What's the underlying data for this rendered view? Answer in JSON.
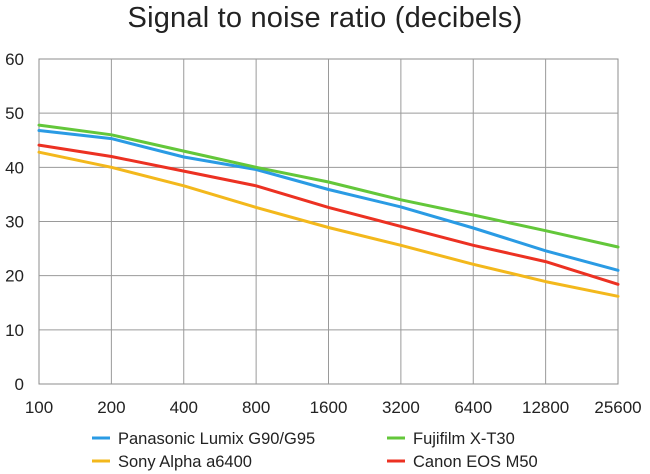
{
  "chart_data": {
    "type": "line",
    "title": "Signal to noise ratio (decibels)",
    "xlabel": "",
    "ylabel": "",
    "x": [
      "100",
      "200",
      "400",
      "800",
      "1600",
      "3200",
      "6400",
      "12800",
      "25600"
    ],
    "ylim": [
      0,
      60
    ],
    "yticks": [
      0,
      10,
      20,
      30,
      40,
      50,
      60
    ],
    "grid": true,
    "legend_position": "bottom",
    "series": [
      {
        "name": "Panasonic Lumix G90/G95",
        "color": "#2a9be4",
        "values": [
          46.8,
          45.3,
          41.9,
          39.6,
          35.9,
          32.7,
          28.8,
          24.6,
          21.0
        ]
      },
      {
        "name": "Fujifilm X-T30",
        "color": "#63c73a",
        "values": [
          47.8,
          46.0,
          43.0,
          40.0,
          37.3,
          34.0,
          31.2,
          28.3,
          25.3
        ]
      },
      {
        "name": "Sony Alpha a6400",
        "color": "#f3b81c",
        "values": [
          42.8,
          40.0,
          36.6,
          32.6,
          28.9,
          25.6,
          22.1,
          18.9,
          16.2
        ]
      },
      {
        "name": "Canon EOS M50",
        "color": "#ec3122",
        "values": [
          44.1,
          42.0,
          39.3,
          36.6,
          32.6,
          29.1,
          25.6,
          22.6,
          18.4
        ]
      }
    ]
  }
}
